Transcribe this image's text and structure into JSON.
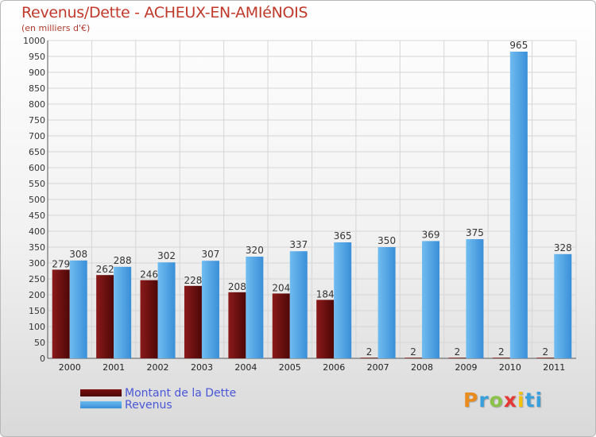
{
  "header": {
    "title": "Revenus/Dette - ACHEUX-EN-AMIéNOIS",
    "subtitle": "(en milliers d'€)"
  },
  "legend": {
    "debt_label": "Montant de la Dette",
    "revenue_label": "Revenus"
  },
  "logo": {
    "text": "Proxiti",
    "letters": [
      "P",
      "r",
      "o",
      "x",
      "i",
      "ti"
    ]
  },
  "colors": {
    "debt": "#6e0e0e",
    "revenue": "#4aa3e6",
    "title": "#c0392b",
    "legend_text": "#4a56d8",
    "grid": "#d6d6d6"
  },
  "chart_data": {
    "type": "bar",
    "title": "Revenus/Dette - ACHEUX-EN-AMIéNOIS",
    "ylabel": "(en milliers d'€)",
    "xlabel": "",
    "categories": [
      "2000",
      "2001",
      "2002",
      "2003",
      "2004",
      "2005",
      "2006",
      "2007",
      "2008",
      "2009",
      "2010",
      "2011"
    ],
    "series": [
      {
        "name": "Montant de la Dette",
        "values": [
          279,
          262,
          246,
          228,
          208,
          204,
          184,
          2,
          2,
          2,
          2,
          2
        ]
      },
      {
        "name": "Revenus",
        "values": [
          308,
          288,
          302,
          307,
          320,
          337,
          365,
          350,
          369,
          375,
          965,
          328
        ]
      }
    ],
    "ylim": [
      0,
      1000
    ],
    "yticks": [
      0,
      50,
      100,
      150,
      200,
      250,
      300,
      350,
      400,
      450,
      500,
      550,
      600,
      650,
      700,
      750,
      800,
      850,
      900,
      950,
      1000
    ],
    "grid": true,
    "legend_position": "bottom-left"
  }
}
